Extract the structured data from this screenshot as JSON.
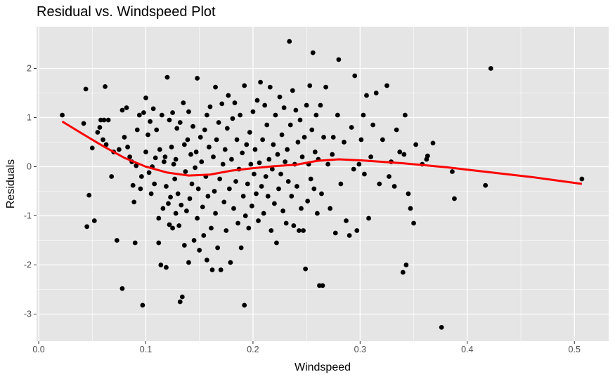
{
  "chart_data": {
    "type": "scatter",
    "title": "Residual vs. Windspeed Plot",
    "xlabel": "Windspeed",
    "ylabel": "Residuals",
    "xlim": [
      -0.002,
      0.532
    ],
    "ylim": [
      -3.55,
      2.85
    ],
    "x_ticks": [
      0.0,
      0.1,
      0.2,
      0.3,
      0.4,
      0.5
    ],
    "x_tick_labels": [
      "0.0",
      "0.1",
      "0.2",
      "0.3",
      "0.4",
      "0.5"
    ],
    "y_ticks": [
      -3,
      -2,
      -1,
      0,
      1,
      2
    ],
    "y_tick_labels": [
      "-3",
      "-2",
      "-1",
      "0",
      "1",
      "2"
    ],
    "grid": true,
    "panel_background": "#e5e5e5",
    "grid_color": "#ffffff",
    "point_color": "#000000",
    "smooth_color": "#ff0000",
    "smooth_line": {
      "x": [
        0.022,
        0.04,
        0.06,
        0.08,
        0.1,
        0.12,
        0.14,
        0.16,
        0.18,
        0.2,
        0.22,
        0.24,
        0.26,
        0.28,
        0.3,
        0.32,
        0.34,
        0.36,
        0.38,
        0.4,
        0.42,
        0.44,
        0.46,
        0.48,
        0.507
      ],
      "y": [
        0.92,
        0.68,
        0.42,
        0.18,
        0.0,
        -0.12,
        -0.18,
        -0.16,
        -0.08,
        -0.03,
        0.01,
        0.04,
        0.12,
        0.15,
        0.13,
        0.1,
        0.07,
        0.03,
        -0.01,
        -0.06,
        -0.11,
        -0.16,
        -0.21,
        -0.27,
        -0.35
      ]
    },
    "points": [
      [
        0.022,
        1.05
      ],
      [
        0.042,
        0.88
      ],
      [
        0.044,
        1.58
      ],
      [
        0.045,
        -1.22
      ],
      [
        0.047,
        -0.58
      ],
      [
        0.05,
        0.38
      ],
      [
        0.052,
        -1.1
      ],
      [
        0.055,
        0.7
      ],
      [
        0.057,
        0.8
      ],
      [
        0.058,
        0.95
      ],
      [
        0.06,
        0.55
      ],
      [
        0.061,
        0.95
      ],
      [
        0.062,
        1.63
      ],
      [
        0.063,
        0.45
      ],
      [
        0.065,
        0.95
      ],
      [
        0.068,
        -0.2
      ],
      [
        0.07,
        0.3
      ],
      [
        0.073,
        -1.5
      ],
      [
        0.075,
        0.35
      ],
      [
        0.078,
        1.15
      ],
      [
        0.078,
        -2.48
      ],
      [
        0.08,
        0.6
      ],
      [
        0.082,
        1.2
      ],
      [
        0.083,
        0.4
      ],
      [
        0.085,
        0.2
      ],
      [
        0.087,
        0.1
      ],
      [
        0.088,
        -0.38
      ],
      [
        0.089,
        -0.72
      ],
      [
        0.09,
        -1.55
      ],
      [
        0.091,
        0.02
      ],
      [
        0.092,
        0.75
      ],
      [
        0.094,
        1.05
      ],
      [
        0.095,
        -0.45
      ],
      [
        0.096,
        -0.2
      ],
      [
        0.097,
        -2.82
      ],
      [
        0.098,
        1.1
      ],
      [
        0.1,
        1.4
      ],
      [
        0.1,
        0.3
      ],
      [
        0.102,
        0.65
      ],
      [
        0.103,
        -0.12
      ],
      [
        0.104,
        0.92
      ],
      [
        0.105,
        -0.55
      ],
      [
        0.106,
        0.0
      ],
      [
        0.107,
        1.18
      ],
      [
        0.108,
        -0.35
      ],
      [
        0.109,
        0.18
      ],
      [
        0.11,
        0.75
      ],
      [
        0.112,
        -1.55
      ],
      [
        0.112,
        -1.05
      ],
      [
        0.113,
        0.35
      ],
      [
        0.114,
        -2.0
      ],
      [
        0.115,
        1.05
      ],
      [
        0.116,
        -0.85
      ],
      [
        0.117,
        0.1
      ],
      [
        0.118,
        0.2
      ],
      [
        0.119,
        -0.4
      ],
      [
        0.119,
        -2.05
      ],
      [
        0.12,
        1.82
      ],
      [
        0.121,
        -0.75
      ],
      [
        0.122,
        -1.18
      ],
      [
        0.122,
        0.95
      ],
      [
        0.123,
        -0.62
      ],
      [
        0.124,
        0.4
      ],
      [
        0.125,
        -1.25
      ],
      [
        0.125,
        1.1
      ],
      [
        0.126,
        0.05
      ],
      [
        0.127,
        -0.25
      ],
      [
        0.128,
        0.15
      ],
      [
        0.128,
        -0.95
      ],
      [
        0.129,
        0.78
      ],
      [
        0.13,
        -0.55
      ],
      [
        0.131,
        -1.2
      ],
      [
        0.132,
        -2.75
      ],
      [
        0.132,
        0.9
      ],
      [
        0.133,
        -0.78
      ],
      [
        0.134,
        -2.65
      ],
      [
        0.135,
        1.3
      ],
      [
        0.136,
        0.45
      ],
      [
        0.136,
        -1.6
      ],
      [
        0.137,
        -0.1
      ],
      [
        0.138,
        -0.9
      ],
      [
        0.139,
        0.55
      ],
      [
        0.14,
        -1.95
      ],
      [
        0.14,
        1.12
      ],
      [
        0.141,
        -0.65
      ],
      [
        0.142,
        0.25
      ],
      [
        0.143,
        -0.35
      ],
      [
        0.144,
        0.82
      ],
      [
        0.145,
        -1.5
      ],
      [
        0.146,
        -0.02
      ],
      [
        0.147,
        0.3
      ],
      [
        0.148,
        1.8
      ],
      [
        0.148,
        -1.05
      ],
      [
        0.149,
        -0.45
      ],
      [
        0.15,
        -1.7
      ],
      [
        0.151,
        0.6
      ],
      [
        0.152,
        0.1
      ],
      [
        0.153,
        -0.82
      ],
      [
        0.154,
        -1.4
      ],
      [
        0.155,
        0.75
      ],
      [
        0.156,
        -0.2
      ],
      [
        0.157,
        1.05
      ],
      [
        0.157,
        -1.9
      ],
      [
        0.158,
        -0.6
      ],
      [
        0.159,
        0.4
      ],
      [
        0.16,
        1.22
      ],
      [
        0.161,
        -1.25
      ],
      [
        0.162,
        -2.1
      ],
      [
        0.163,
        0.2
      ],
      [
        0.164,
        -0.5
      ],
      [
        0.165,
        1.62
      ],
      [
        0.165,
        -0.95
      ],
      [
        0.166,
        0.55
      ],
      [
        0.167,
        -1.65
      ],
      [
        0.168,
        0.9
      ],
      [
        0.169,
        -0.25
      ],
      [
        0.17,
        -2.1
      ],
      [
        0.171,
        1.28
      ],
      [
        0.172,
        0.05
      ],
      [
        0.173,
        -0.72
      ],
      [
        0.174,
        0.35
      ],
      [
        0.175,
        -1.3
      ],
      [
        0.176,
        0.78
      ],
      [
        0.177,
        1.45
      ],
      [
        0.178,
        -0.45
      ],
      [
        0.179,
        -1.95
      ],
      [
        0.18,
        0.15
      ],
      [
        0.181,
        0.98
      ],
      [
        0.182,
        -0.85
      ],
      [
        0.183,
        1.3
      ],
      [
        0.184,
        -0.3
      ],
      [
        0.185,
        0.55
      ],
      [
        0.186,
        -1.15
      ],
      [
        0.187,
        -0.05
      ],
      [
        0.188,
        1.05
      ],
      [
        0.189,
        -1.65
      ],
      [
        0.19,
        0.28
      ],
      [
        0.191,
        -0.6
      ],
      [
        0.192,
        1.65
      ],
      [
        0.192,
        -2.82
      ],
      [
        0.193,
        -1.0
      ],
      [
        0.194,
        0.45
      ],
      [
        0.195,
        -0.35
      ],
      [
        0.196,
        -1.25
      ],
      [
        0.197,
        0.7
      ],
      [
        0.198,
        0.05
      ],
      [
        0.199,
        -0.8
      ],
      [
        0.2,
        1.12
      ],
      [
        0.201,
        -0.15
      ],
      [
        0.202,
        0.35
      ],
      [
        0.203,
        -0.55
      ],
      [
        0.204,
        1.35
      ],
      [
        0.205,
        -1.1
      ],
      [
        0.206,
        0.08
      ],
      [
        0.207,
        1.72
      ],
      [
        0.208,
        -0.4
      ],
      [
        0.209,
        0.55
      ],
      [
        0.21,
        -0.95
      ],
      [
        0.211,
        1.25
      ],
      [
        0.212,
        -0.2
      ],
      [
        0.213,
        0.85
      ],
      [
        0.214,
        -0.6
      ],
      [
        0.215,
        0.15
      ],
      [
        0.216,
        1.62
      ],
      [
        0.217,
        -1.3
      ],
      [
        0.218,
        -0.05
      ],
      [
        0.219,
        0.45
      ],
      [
        0.22,
        -0.75
      ],
      [
        0.221,
        1.05
      ],
      [
        0.222,
        -1.55
      ],
      [
        0.223,
        0.25
      ],
      [
        0.224,
        -0.45
      ],
      [
        0.225,
        1.42
      ],
      [
        0.226,
        -0.15
      ],
      [
        0.227,
        0.65
      ],
      [
        0.228,
        -0.9
      ],
      [
        0.229,
        1.2
      ],
      [
        0.23,
        0.1
      ],
      [
        0.231,
        -1.15
      ],
      [
        0.232,
        0.35
      ],
      [
        0.233,
        -0.3
      ],
      [
        0.234,
        2.55
      ],
      [
        0.235,
        0.85
      ],
      [
        0.236,
        -0.6
      ],
      [
        0.237,
        1.55
      ],
      [
        0.238,
        -1.2
      ],
      [
        0.239,
        0.05
      ],
      [
        0.24,
        1.15
      ],
      [
        0.241,
        -0.4
      ],
      [
        0.242,
        0.5
      ],
      [
        0.243,
        -1.3
      ],
      [
        0.244,
        0.95
      ],
      [
        0.245,
        -0.85
      ],
      [
        0.246,
        0.2
      ],
      [
        0.247,
        -1.3
      ],
      [
        0.248,
        0.6
      ],
      [
        0.249,
        -2.08
      ],
      [
        0.25,
        1.25
      ],
      [
        0.251,
        -0.7
      ],
      [
        0.252,
        0.05
      ],
      [
        0.253,
        1.65
      ],
      [
        0.254,
        -0.25
      ],
      [
        0.255,
        0.75
      ],
      [
        0.256,
        2.32
      ],
      [
        0.257,
        -0.45
      ],
      [
        0.258,
        0.3
      ],
      [
        0.259,
        1.05
      ],
      [
        0.26,
        -0.95
      ],
      [
        0.261,
        0.15
      ],
      [
        0.262,
        -2.42
      ],
      [
        0.263,
        1.25
      ],
      [
        0.264,
        -0.55
      ],
      [
        0.265,
        -2.42
      ],
      [
        0.266,
        0.6
      ],
      [
        0.268,
        1.62
      ],
      [
        0.27,
        0.05
      ],
      [
        0.272,
        -0.85
      ],
      [
        0.274,
        0.25
      ],
      [
        0.275,
        0.6
      ],
      [
        0.277,
        -1.35
      ],
      [
        0.279,
        1.05
      ],
      [
        0.28,
        2.18
      ],
      [
        0.282,
        -0.35
      ],
      [
        0.285,
        0.5
      ],
      [
        0.287,
        -1.1
      ],
      [
        0.29,
        -1.4
      ],
      [
        0.292,
        0.8
      ],
      [
        0.294,
        -0.05
      ],
      [
        0.295,
        1.85
      ],
      [
        0.297,
        -1.3
      ],
      [
        0.299,
        0.05
      ],
      [
        0.301,
        0.55
      ],
      [
        0.303,
        1.05
      ],
      [
        0.304,
        -0.15
      ],
      [
        0.306,
        1.45
      ],
      [
        0.308,
        -1.05
      ],
      [
        0.31,
        0.2
      ],
      [
        0.312,
        0.85
      ],
      [
        0.315,
        1.5
      ],
      [
        0.318,
        -0.35
      ],
      [
        0.321,
        0.55
      ],
      [
        0.325,
        1.65
      ],
      [
        0.327,
        -0.2
      ],
      [
        0.329,
        0.1
      ],
      [
        0.332,
        -0.4
      ],
      [
        0.334,
        0.75
      ],
      [
        0.337,
        0.3
      ],
      [
        0.34,
        -2.15
      ],
      [
        0.341,
        0.25
      ],
      [
        0.342,
        1.05
      ],
      [
        0.343,
        -2.0
      ],
      [
        0.345,
        -0.55
      ],
      [
        0.347,
        -0.85
      ],
      [
        0.35,
        -1.15
      ],
      [
        0.352,
        0.45
      ],
      [
        0.358,
        0.05
      ],
      [
        0.362,
        0.15
      ],
      [
        0.363,
        0.22
      ],
      [
        0.368,
        0.48
      ],
      [
        0.376,
        -3.27
      ],
      [
        0.386,
        -0.1
      ],
      [
        0.388,
        -0.65
      ],
      [
        0.417,
        -0.38
      ],
      [
        0.422,
        2.0
      ],
      [
        0.507,
        -0.25
      ]
    ]
  }
}
